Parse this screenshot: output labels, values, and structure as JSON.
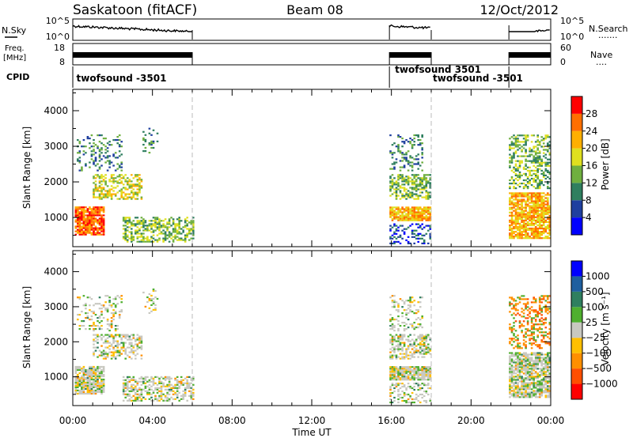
{
  "header": {
    "station": "Saskatoon (fitACF)",
    "beam": "Beam 08",
    "date": "12/Oct/2012"
  },
  "noise_panel": {
    "left_label": "N.Sky",
    "right_label": "N.Search",
    "left_ticks": [
      "10^5",
      "10^0"
    ],
    "right_ticks": [
      "10^5",
      "10^0"
    ],
    "right_dots": "......."
  },
  "freq_panel": {
    "left_label_1": "Freq.",
    "left_label_2": "[MHz]",
    "left_ticks": [
      "18",
      "8"
    ],
    "right_label": "Nave",
    "right_ticks": [
      "60",
      "0"
    ],
    "right_dots": "....",
    "cpid_label": "CPID"
  },
  "cpid_labels": [
    {
      "text": "twofsound -3501",
      "t": 0.1
    },
    {
      "text": "twofsound 3501",
      "t": 16.1
    },
    {
      "text": "twofsound -3501",
      "t": 18.0
    }
  ],
  "colors": {
    "power_scale": [
      "#0000ff",
      "#1f3f9f",
      "#2f7f5f",
      "#6faf3f",
      "#dfdf1f",
      "#ffaf00",
      "#ff6f00",
      "#ff0000"
    ],
    "velocity_scale": [
      "#ff0000",
      "#ff4f00",
      "#ff8f00",
      "#ffbf00",
      "#c8c8c0",
      "#4faf2f",
      "#2f7f5f",
      "#1f5f9f",
      "#0000ff"
    ]
  },
  "chart_data": [
    {
      "type": "heatmap",
      "ylabel": "Slant Range [km]",
      "yticks": [
        "1000",
        "2000",
        "3000",
        "4000"
      ],
      "ylim": [
        180,
        4600
      ],
      "xlim": [
        0,
        24
      ],
      "colorbar_label": "Power [dB]",
      "colorbar_ticks": [
        "4",
        "8",
        "12",
        "16",
        "20",
        "24",
        "28"
      ],
      "colorbar_range": [
        0,
        32
      ],
      "data_segments_hours": [
        [
          0,
          6
        ],
        [
          15.9,
          18
        ],
        [
          21.9,
          24
        ]
      ]
    },
    {
      "type": "heatmap",
      "ylabel": "Slant Range [km]",
      "yticks": [
        "1000",
        "2000",
        "3000",
        "4000"
      ],
      "ylim": [
        180,
        4600
      ],
      "xlim": [
        0,
        24
      ],
      "colorbar_label": "Velocity [m s⁻¹]",
      "colorbar_ticks": [
        "1000",
        "500",
        "100",
        "25",
        "−25",
        "−100",
        "−500",
        "−1000"
      ],
      "xlabel": "Time UT",
      "xticks": [
        "00:00",
        "04:00",
        "08:00",
        "12:00",
        "16:00",
        "20:00",
        "00:00"
      ],
      "data_segments_hours": [
        [
          0,
          6
        ],
        [
          15.9,
          18
        ],
        [
          21.9,
          24
        ]
      ]
    }
  ]
}
